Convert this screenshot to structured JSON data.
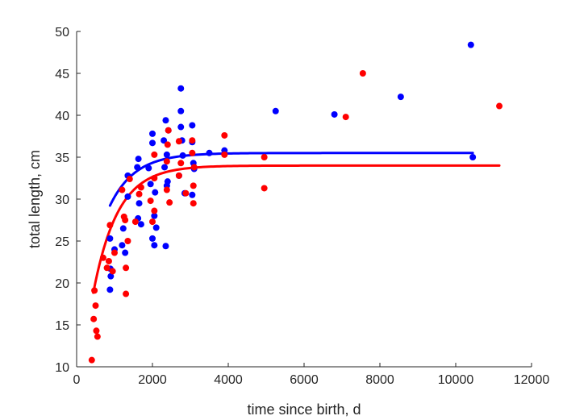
{
  "chart_data": {
    "type": "scatter",
    "title": "",
    "xlabel": "time since birth, d",
    "ylabel": "total length, cm",
    "xlim": [
      0,
      12000
    ],
    "ylim": [
      10,
      50
    ],
    "xticks": [
      0,
      2000,
      4000,
      6000,
      8000,
      10000,
      12000
    ],
    "yticks": [
      10,
      15,
      20,
      25,
      30,
      35,
      40,
      45,
      50
    ],
    "grid": false,
    "legend": "none",
    "series": [
      {
        "name": "blue points",
        "color": "#0000ff",
        "points": [
          [
            880,
            25.3
          ],
          [
            890,
            21.7
          ],
          [
            900,
            20.8
          ],
          [
            880,
            19.2
          ],
          [
            1000,
            24.0
          ],
          [
            1200,
            24.5
          ],
          [
            1230,
            26.5
          ],
          [
            1280,
            23.6
          ],
          [
            1350,
            32.8
          ],
          [
            1350,
            30.3
          ],
          [
            1600,
            33.8
          ],
          [
            1630,
            34.8
          ],
          [
            1620,
            27.7
          ],
          [
            1650,
            29.5
          ],
          [
            1700,
            27.0
          ],
          [
            1900,
            33.7
          ],
          [
            1950,
            31.8
          ],
          [
            2000,
            37.8
          ],
          [
            2000,
            36.7
          ],
          [
            2000,
            25.3
          ],
          [
            2050,
            24.5
          ],
          [
            2050,
            28.0
          ],
          [
            2070,
            30.8
          ],
          [
            2100,
            26.6
          ],
          [
            2300,
            37.0
          ],
          [
            2320,
            33.8
          ],
          [
            2350,
            39.4
          ],
          [
            2380,
            35.3
          ],
          [
            2380,
            31.6
          ],
          [
            2400,
            32.1
          ],
          [
            2420,
            38.2
          ],
          [
            2350,
            24.4
          ],
          [
            2700,
            32.8
          ],
          [
            2750,
            40.5
          ],
          [
            2750,
            43.2
          ],
          [
            2750,
            38.6
          ],
          [
            2780,
            37.0
          ],
          [
            2800,
            35.2
          ],
          [
            2850,
            30.7
          ],
          [
            3050,
            38.8
          ],
          [
            3050,
            36.8
          ],
          [
            3080,
            34.3
          ],
          [
            3100,
            33.6
          ],
          [
            3050,
            30.5
          ],
          [
            3500,
            35.5
          ],
          [
            3900,
            35.8
          ],
          [
            5250,
            40.5
          ],
          [
            6800,
            40.1
          ],
          [
            8550,
            42.2
          ],
          [
            10400,
            48.4
          ],
          [
            10450,
            35.0
          ]
        ]
      },
      {
        "name": "red points",
        "color": "#ff0000",
        "points": [
          [
            400,
            10.8
          ],
          [
            450,
            15.7
          ],
          [
            470,
            19.1
          ],
          [
            500,
            17.3
          ],
          [
            520,
            14.3
          ],
          [
            550,
            13.6
          ],
          [
            700,
            23.0
          ],
          [
            800,
            21.8
          ],
          [
            850,
            22.6
          ],
          [
            880,
            26.9
          ],
          [
            950,
            21.4
          ],
          [
            1000,
            23.6
          ],
          [
            1200,
            31.1
          ],
          [
            1250,
            27.9
          ],
          [
            1280,
            27.5
          ],
          [
            1300,
            18.7
          ],
          [
            1300,
            21.8
          ],
          [
            1350,
            25.0
          ],
          [
            1400,
            32.4
          ],
          [
            1550,
            27.3
          ],
          [
            1650,
            30.6
          ],
          [
            1700,
            31.4
          ],
          [
            1950,
            29.8
          ],
          [
            2000,
            27.3
          ],
          [
            2050,
            35.3
          ],
          [
            2050,
            32.5
          ],
          [
            2050,
            28.6
          ],
          [
            2380,
            31.1
          ],
          [
            2380,
            34.5
          ],
          [
            2400,
            36.5
          ],
          [
            2420,
            38.2
          ],
          [
            2450,
            29.6
          ],
          [
            2700,
            32.8
          ],
          [
            2700,
            36.9
          ],
          [
            2750,
            34.3
          ],
          [
            2880,
            30.7
          ],
          [
            3050,
            35.5
          ],
          [
            3050,
            37.0
          ],
          [
            3080,
            31.6
          ],
          [
            3080,
            29.5
          ],
          [
            3100,
            33.8
          ],
          [
            3900,
            35.3
          ],
          [
            3900,
            37.6
          ],
          [
            4950,
            35.0
          ],
          [
            4950,
            31.3
          ],
          [
            7100,
            39.8
          ],
          [
            7550,
            45.0
          ],
          [
            11150,
            41.1
          ]
        ]
      }
    ],
    "fits": [
      {
        "name": "blue fit curve",
        "color": "#0000ff",
        "model": "von Bertalanffy",
        "Linf": 35.5,
        "L0": 12.0,
        "k": 0.0015,
        "x_start": 880,
        "x_end": 10450
      },
      {
        "name": "red fit curve",
        "color": "#ff0000",
        "model": "von Bertalanffy",
        "Linf": 34.0,
        "L0": 4.0,
        "k": 0.00155,
        "x_start": 440,
        "x_end": 11150
      }
    ]
  }
}
